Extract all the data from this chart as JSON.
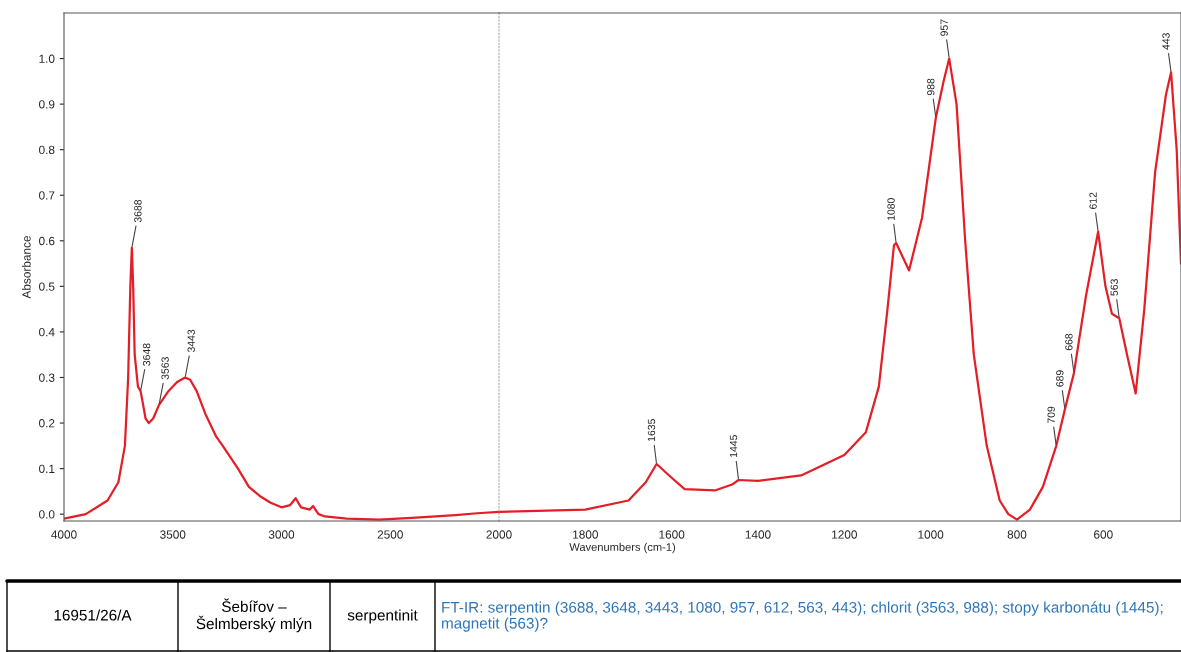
{
  "chart_data": [
    {
      "type": "line",
      "ylabel": "Absorbance",
      "xlim": [
        4000,
        2000
      ],
      "xticks": [
        4000,
        3500,
        3000,
        2500,
        2000
      ],
      "ylim": [
        -0.015,
        1.1
      ],
      "yticks": [
        {
          "value": 0,
          "label": "0.0"
        },
        0.1,
        0.2,
        0.3,
        0.4,
        0.5,
        0.6,
        0.7,
        0.8,
        0.9,
        {
          "value": 1,
          "label": "1.0"
        }
      ],
      "grid": false,
      "series": [
        {
          "color": "#e41e26",
          "x": [
            4000,
            3900,
            3800,
            3750,
            3720,
            3705,
            3695,
            3688,
            3682,
            3675,
            3660,
            3648,
            3640,
            3625,
            3610,
            3590,
            3563,
            3520,
            3480,
            3443,
            3420,
            3390,
            3350,
            3300,
            3270,
            3200,
            3150,
            3100,
            3050,
            3000,
            2960,
            2935,
            2910,
            2870,
            2855,
            2830,
            2800,
            2700,
            2550,
            2400,
            2200,
            2100,
            2000
          ],
          "values": [
            -0.01,
            0.0,
            0.03,
            0.07,
            0.15,
            0.3,
            0.5,
            0.585,
            0.5,
            0.35,
            0.28,
            0.27,
            0.25,
            0.21,
            0.2,
            0.21,
            0.24,
            0.27,
            0.29,
            0.3,
            0.295,
            0.27,
            0.22,
            0.17,
            0.15,
            0.1,
            0.06,
            0.04,
            0.025,
            0.015,
            0.02,
            0.035,
            0.015,
            0.01,
            0.018,
            0.0,
            -0.005,
            -0.01,
            -0.012,
            -0.008,
            -0.002,
            0.002,
            0.005
          ]
        }
      ],
      "annotations": [
        {
          "text": "3688",
          "x": 3688,
          "y": 0.585
        },
        {
          "text": "3648",
          "x": 3648,
          "y": 0.27
        },
        {
          "text": "3563",
          "x": 3563,
          "y": 0.24
        },
        {
          "text": "3443",
          "x": 3443,
          "y": 0.3
        }
      ]
    },
    {
      "type": "line",
      "xlabel": "Wavenumbers (cm-1)",
      "xlim": [
        2000,
        420
      ],
      "xticks": [
        1800,
        1600,
        1400,
        1200,
        1000,
        800,
        600
      ],
      "ylim": [
        -0.015,
        1.1
      ],
      "tick_labels": "x",
      "grid": false,
      "series": [
        {
          "color": "#e41e26",
          "x": [
            2000,
            1800,
            1700,
            1660,
            1635,
            1600,
            1570,
            1500,
            1460,
            1445,
            1400,
            1300,
            1200,
            1150,
            1120,
            1100,
            1085,
            1080,
            1050,
            1020,
            988,
            970,
            957,
            940,
            920,
            900,
            870,
            840,
            820,
            800,
            770,
            740,
            709,
            689,
            668,
            640,
            612,
            595,
            580,
            563,
            545,
            525,
            505,
            480,
            455,
            443,
            430,
            420
          ],
          "values": [
            0.005,
            0.01,
            0.03,
            0.07,
            0.11,
            0.08,
            0.055,
            0.052,
            0.065,
            0.075,
            0.073,
            0.085,
            0.13,
            0.18,
            0.28,
            0.45,
            0.59,
            0.595,
            0.535,
            0.65,
            0.87,
            0.95,
            1.0,
            0.9,
            0.6,
            0.35,
            0.15,
            0.03,
            0.0,
            -0.012,
            0.01,
            0.06,
            0.15,
            0.23,
            0.31,
            0.48,
            0.62,
            0.5,
            0.44,
            0.43,
            0.35,
            0.265,
            0.45,
            0.75,
            0.92,
            0.97,
            0.8,
            0.55
          ]
        }
      ],
      "annotations": [
        {
          "text": "1635",
          "x": 1635,
          "y": 0.11
        },
        {
          "text": "1445",
          "x": 1445,
          "y": 0.075
        },
        {
          "text": "1080",
          "x": 1080,
          "y": 0.595
        },
        {
          "text": "988",
          "x": 988,
          "y": 0.87
        },
        {
          "text": "957",
          "x": 957,
          "y": 1.0
        },
        {
          "text": "709",
          "x": 709,
          "y": 0.15
        },
        {
          "text": "689",
          "x": 689,
          "y": 0.23
        },
        {
          "text": "668",
          "x": 668,
          "y": 0.31
        },
        {
          "text": "612",
          "x": 612,
          "y": 0.62
        },
        {
          "text": "563",
          "x": 563,
          "y": 0.43
        },
        {
          "text": "443",
          "x": 443,
          "y": 0.97
        },
        "16951/26/A",
        "Šebířov – Šelmberský mlýn",
        "serpentinit",
        "FT-IR: serpentin (3688, 3648, 3443, 1080, 957, 612, 563, 443); chlorit (3563, 988); stopy karbonátu (1445); magnetit (563)?"
      ]
    }
  ]
}
